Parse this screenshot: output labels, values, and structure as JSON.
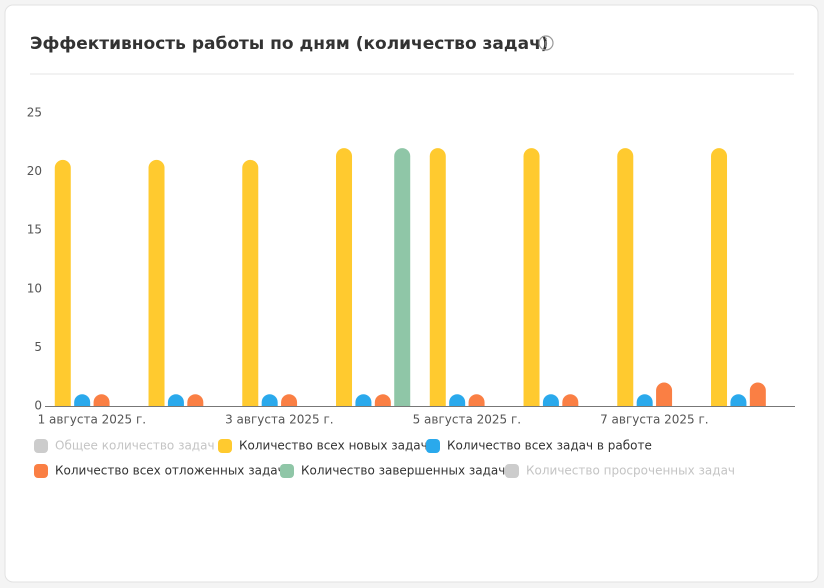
{
  "chart_data": {
    "type": "bar",
    "title": "Эффективность работы по дням (количество задач)",
    "categories": [
      "1 августа 2025 г.",
      null,
      "3 августа 2025 г.",
      null,
      "5 августа 2025 г.",
      null,
      "7 августа 2025 г.",
      null
    ],
    "series": [
      {
        "name": "Общее количество задач",
        "color": "#cccccc",
        "hidden": true,
        "values": [
          null,
          null,
          null,
          null,
          null,
          null,
          null,
          null
        ]
      },
      {
        "name": "Количество всех новых задач",
        "color": "#ffca2f",
        "values": [
          21,
          21,
          21,
          22,
          22,
          22,
          22,
          22
        ]
      },
      {
        "name": "Количество всех задач в работе",
        "color": "#2aa9ec",
        "values": [
          1,
          1,
          1,
          1,
          1,
          1,
          1,
          1
        ]
      },
      {
        "name": "Количество всех отложенных задач",
        "color": "#fa7f44",
        "values": [
          1,
          1,
          1,
          1,
          1,
          1,
          2,
          2
        ]
      },
      {
        "name": "Количество завершенных задач",
        "color": "#8fc6a7",
        "values": [
          0,
          0,
          0,
          22,
          0,
          0,
          0,
          0
        ]
      },
      {
        "name": "Количество просроченных задач",
        "color": "#cccccc",
        "hidden": true,
        "values": [
          null,
          null,
          null,
          null,
          null,
          null,
          null,
          null
        ]
      }
    ],
    "ylim": [
      0,
      25
    ],
    "yticks": [
      0,
      5,
      10,
      15,
      20,
      25
    ],
    "grid": false
  }
}
